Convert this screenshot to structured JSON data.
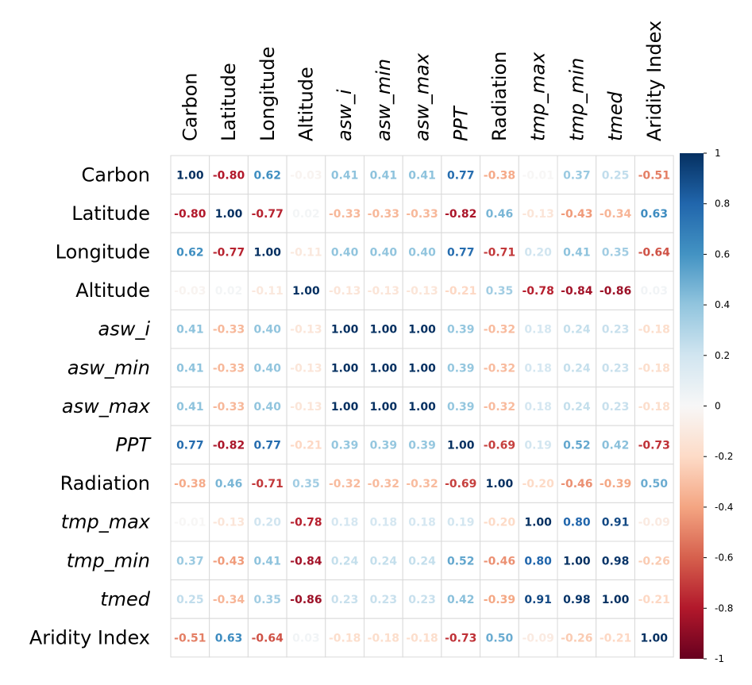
{
  "chart_data": {
    "type": "heatmap",
    "title": "",
    "variables": [
      "Carbon",
      "Latitude",
      "Longitude",
      "Altitude",
      "asw_i",
      "asw_min",
      "asw_max",
      "PPT",
      "Radiation",
      "tmp_max",
      "tmp_min",
      "tmed",
      "Aridity Index"
    ],
    "italic": [
      false,
      false,
      false,
      false,
      true,
      true,
      true,
      true,
      false,
      true,
      true,
      true,
      false
    ],
    "matrix": [
      [
        1.0,
        -0.8,
        0.62,
        -0.03,
        0.41,
        0.41,
        0.41,
        0.77,
        -0.38,
        -0.01,
        0.37,
        0.25,
        -0.51
      ],
      [
        -0.8,
        1.0,
        -0.77,
        0.02,
        -0.33,
        -0.33,
        -0.33,
        -0.82,
        0.46,
        -0.13,
        -0.43,
        -0.34,
        0.63
      ],
      [
        0.62,
        -0.77,
        1.0,
        -0.11,
        0.4,
        0.4,
        0.4,
        0.77,
        -0.71,
        0.2,
        0.41,
        0.35,
        -0.64
      ],
      [
        -0.03,
        0.02,
        -0.11,
        1.0,
        -0.13,
        -0.13,
        -0.13,
        -0.21,
        0.35,
        -0.78,
        -0.84,
        -0.86,
        0.03
      ],
      [
        0.41,
        -0.33,
        0.4,
        -0.13,
        1.0,
        1.0,
        1.0,
        0.39,
        -0.32,
        0.18,
        0.24,
        0.23,
        -0.18
      ],
      [
        0.41,
        -0.33,
        0.4,
        -0.13,
        1.0,
        1.0,
        1.0,
        0.39,
        -0.32,
        0.18,
        0.24,
        0.23,
        -0.18
      ],
      [
        0.41,
        -0.33,
        0.4,
        -0.13,
        1.0,
        1.0,
        1.0,
        0.39,
        -0.32,
        0.18,
        0.24,
        0.23,
        -0.18
      ],
      [
        0.77,
        -0.82,
        0.77,
        -0.21,
        0.39,
        0.39,
        0.39,
        1.0,
        -0.69,
        0.19,
        0.52,
        0.42,
        -0.73
      ],
      [
        -0.38,
        0.46,
        -0.71,
        0.35,
        -0.32,
        -0.32,
        -0.32,
        -0.69,
        1.0,
        -0.2,
        -0.46,
        -0.39,
        0.5
      ],
      [
        -0.01,
        -0.13,
        0.2,
        -0.78,
        0.18,
        0.18,
        0.18,
        0.19,
        -0.2,
        1.0,
        0.8,
        0.91,
        -0.09
      ],
      [
        0.37,
        -0.43,
        0.41,
        -0.84,
        0.24,
        0.24,
        0.24,
        0.52,
        -0.46,
        0.8,
        1.0,
        0.98,
        -0.26
      ],
      [
        0.25,
        -0.34,
        0.35,
        -0.86,
        0.23,
        0.23,
        0.23,
        0.42,
        -0.39,
        0.91,
        0.98,
        1.0,
        -0.21
      ],
      [
        -0.51,
        0.63,
        -0.64,
        0.03,
        -0.18,
        -0.18,
        -0.18,
        -0.73,
        0.5,
        -0.09,
        -0.26,
        -0.21,
        1.0
      ]
    ],
    "value_range": [
      -1,
      1
    ],
    "colorbar_ticks": [
      "1",
      "0.8",
      "0.6",
      "0.4",
      "0.2",
      "0",
      "-0.2",
      "-0.4",
      "-0.6",
      "-0.8",
      "-1"
    ],
    "colors": {
      "negative": "#67001F",
      "neutral": "#F7F7F7",
      "positive": "#053061",
      "grid": "#d9d9d9"
    }
  }
}
